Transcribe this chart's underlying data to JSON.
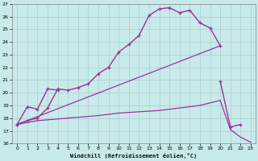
{
  "background_color": "#c8eaea",
  "grid_color": "#aacccc",
  "line_color": "#993399",
  "xlabel": "Windchill (Refroidissement éolien,°C)",
  "xlim": [
    -0.5,
    23.5
  ],
  "ylim": [
    16,
    27
  ],
  "xticks": [
    0,
    1,
    2,
    3,
    4,
    5,
    6,
    7,
    8,
    9,
    10,
    11,
    12,
    13,
    14,
    15,
    16,
    17,
    18,
    19,
    20,
    21,
    22,
    23
  ],
  "yticks": [
    16,
    17,
    18,
    19,
    20,
    21,
    22,
    23,
    24,
    25,
    26,
    27
  ],
  "c1x": [
    0,
    1,
    2,
    3,
    4,
    5,
    6,
    7,
    8,
    9,
    10,
    11,
    12,
    13,
    14,
    15,
    16,
    17,
    18,
    19,
    20
  ],
  "c1y": [
    17.5,
    17.8,
    18.0,
    18.8,
    20.3,
    20.2,
    20.4,
    20.7,
    21.5,
    22.0,
    23.2,
    23.8,
    24.5,
    26.1,
    26.6,
    26.7,
    26.3,
    26.5,
    25.5,
    25.1,
    23.7
  ],
  "c2ax": [
    0,
    1,
    2,
    3,
    4
  ],
  "c2ay": [
    17.5,
    18.9,
    18.7,
    20.3,
    20.2
  ],
  "c2bx": [
    20,
    21,
    22
  ],
  "c2by": [
    20.9,
    17.3,
    17.5
  ],
  "c3x": [
    0,
    20
  ],
  "c3y": [
    17.5,
    23.7
  ],
  "c4x": [
    0,
    2,
    5,
    8,
    10,
    12,
    14,
    16,
    18,
    19,
    20,
    21,
    22,
    23
  ],
  "c4y": [
    17.5,
    17.8,
    18.0,
    18.2,
    18.4,
    18.5,
    18.6,
    18.8,
    19.0,
    19.2,
    19.4,
    17.1,
    16.5,
    16.1
  ]
}
